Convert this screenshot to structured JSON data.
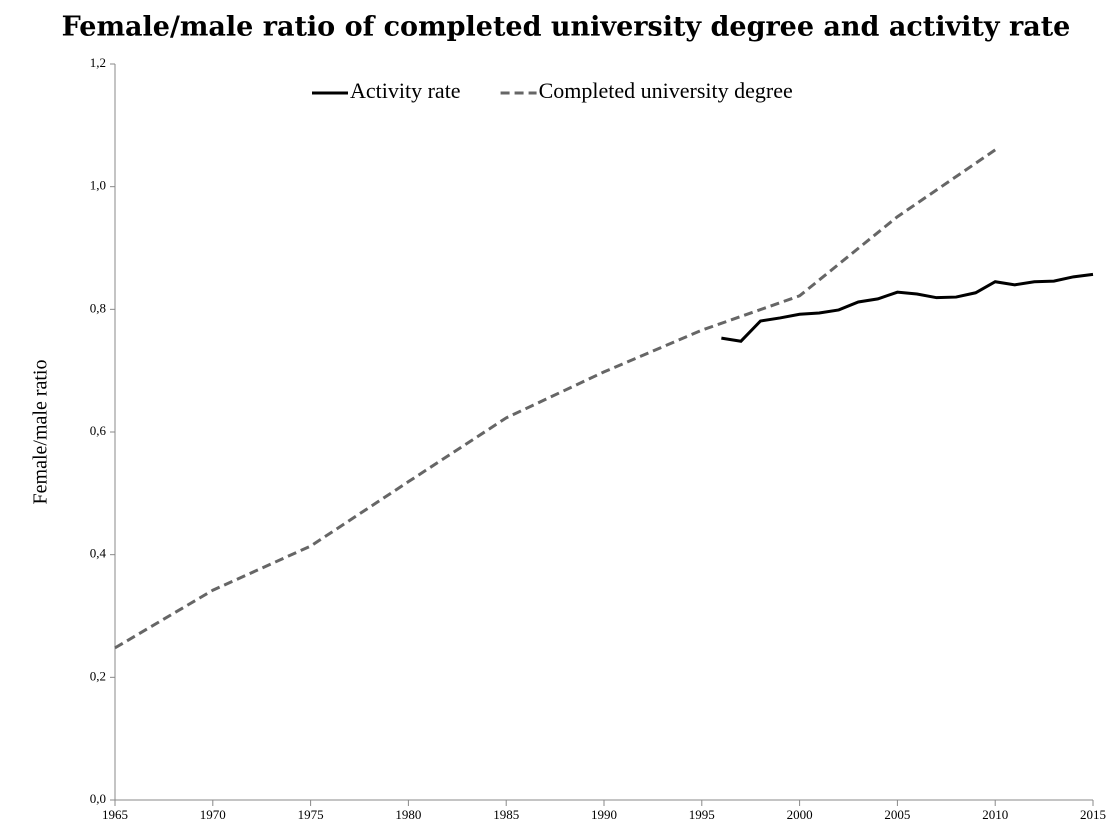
{
  "chart_data": {
    "type": "line",
    "title": "Female/male ratio of completed university degree and activity rate",
    "y_label": "Female/male ratio",
    "xlim": [
      1965,
      2015
    ],
    "xticks": [
      1965,
      1970,
      1975,
      1980,
      1985,
      1990,
      1995,
      2000,
      2005,
      2010,
      2015
    ],
    "ylim": [
      0,
      1.2
    ],
    "yticks": [
      {
        "value": 0,
        "label": "0,0"
      },
      {
        "value": 0.2,
        "label": "0,2"
      },
      {
        "value": 0.4,
        "label": "0,4"
      },
      {
        "value": 0.6,
        "label": "0,6"
      },
      {
        "value": 0.8,
        "label": "0,8"
      },
      {
        "value": 1.0,
        "label": "1,0"
      },
      {
        "value": 1.2,
        "label": "1,2"
      }
    ],
    "grid": false,
    "legend": "top",
    "series": [
      {
        "name": "Activity rate",
        "color": "#000000",
        "dash": "solid",
        "x": [
          1996,
          1997,
          1998,
          1999,
          2000,
          2001,
          2002,
          2003,
          2004,
          2005,
          2006,
          2007,
          2008,
          2009,
          2010,
          2011,
          2012,
          2013,
          2014,
          2015
        ],
        "values": [
          0.753,
          0.748,
          0.781,
          0.786,
          0.792,
          0.794,
          0.799,
          0.812,
          0.817,
          0.828,
          0.825,
          0.819,
          0.82,
          0.827,
          0.845,
          0.84,
          0.845,
          0.846,
          0.853,
          0.857
        ]
      },
      {
        "name": "Completed university degree",
        "color": "#666666",
        "dash": "dashed",
        "x": [
          1965,
          1970,
          1975,
          1980,
          1985,
          1990,
          1995,
          2000,
          2005,
          2010
        ],
        "values": [
          0.248,
          0.342,
          0.414,
          0.519,
          0.623,
          0.698,
          0.766,
          0.822,
          0.951,
          1.06
        ]
      }
    ]
  }
}
